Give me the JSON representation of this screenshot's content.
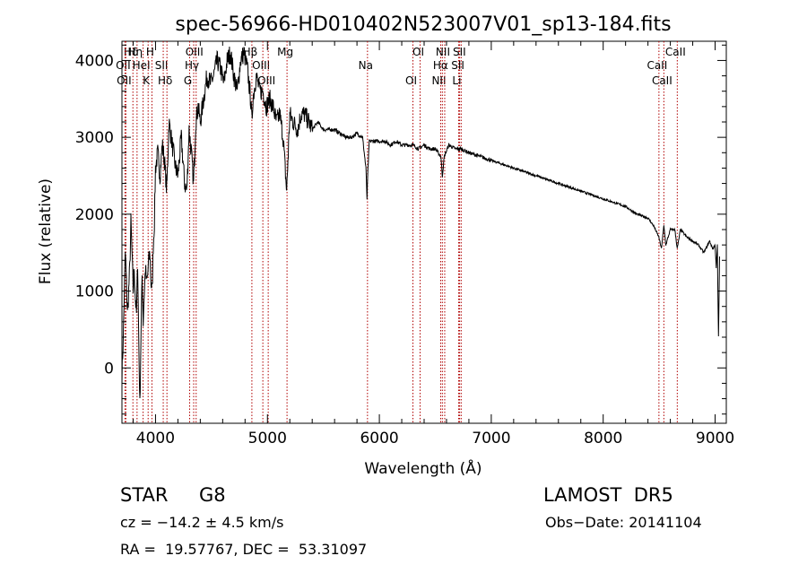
{
  "chart_data": {
    "type": "line",
    "title": "spec-56966-HD010402N523007V01_sp13-184.fits",
    "xlabel": "Wavelength (Å)",
    "ylabel": "Flux (relative)",
    "xlim": [
      3700,
      9100
    ],
    "ylim": [
      -720,
      4250
    ],
    "xticks": [
      4000,
      5000,
      6000,
      7000,
      8000,
      9000
    ],
    "xtick_labels": [
      "4000",
      "5000",
      "6000",
      "7000",
      "8000",
      "9000"
    ],
    "yticks": [
      0,
      1000,
      2000,
      3000,
      4000
    ],
    "ytick_labels": [
      "0",
      "1000",
      "2000",
      "3000",
      "4000"
    ],
    "grid": false,
    "series": [
      {
        "x": [
          3700,
          3710,
          3720,
          3730,
          3740,
          3750,
          3760,
          3770,
          3780,
          3790,
          3800,
          3810,
          3820,
          3830,
          3840,
          3850,
          3860,
          3870,
          3880,
          3890,
          3900,
          3910,
          3920,
          3930,
          3940,
          3950,
          3960,
          3970,
          3980,
          3990,
          4000,
          4020,
          4040,
          4060,
          4080,
          4100,
          4120,
          4150,
          4180,
          4200,
          4230,
          4260,
          4280,
          4300,
          4320,
          4340,
          4360,
          4380,
          4400,
          4430,
          4460,
          4490,
          4520,
          4550,
          4580,
          4610,
          4640,
          4670,
          4700,
          4730,
          4760,
          4790,
          4820,
          4850,
          4861,
          4870,
          4900,
          4930,
          4960,
          4990,
          5020,
          5050,
          5080,
          5110,
          5140,
          5167,
          5172,
          5183,
          5200,
          5230,
          5270,
          5300,
          5330,
          5370,
          5400,
          5450,
          5500,
          5550,
          5600,
          5650,
          5700,
          5750,
          5800,
          5850,
          5880,
          5890,
          5896,
          5910,
          5950,
          6000,
          6050,
          6100,
          6150,
          6200,
          6250,
          6300,
          6350,
          6400,
          6450,
          6500,
          6550,
          6563,
          6580,
          6620,
          6680,
          6730,
          6800,
          6900,
          7000,
          7100,
          7200,
          7300,
          7400,
          7500,
          7600,
          7700,
          7800,
          7900,
          8000,
          8100,
          8200,
          8300,
          8400,
          8450,
          8498,
          8520,
          8542,
          8560,
          8600,
          8640,
          8662,
          8690,
          8750,
          8800,
          8850,
          8900,
          8950,
          8980,
          9000,
          9010,
          9020,
          9030,
          9040
        ],
        "y": [
          -100,
          300,
          900,
          1500,
          1100,
          700,
          1000,
          1300,
          1900,
          1500,
          1000,
          1300,
          900,
          700,
          1400,
          400,
          -500,
          400,
          1200,
          600,
          1000,
          1300,
          1100,
          1200,
          1400,
          1500,
          1100,
          1000,
          1600,
          1900,
          2600,
          2800,
          2500,
          2900,
          2700,
          2300,
          3200,
          2900,
          2600,
          2500,
          3000,
          2400,
          2300,
          3100,
          2800,
          2400,
          3200,
          3400,
          3200,
          3500,
          3800,
          3700,
          3800,
          4000,
          3900,
          3700,
          4000,
          4100,
          3800,
          3600,
          4000,
          4100,
          3900,
          3500,
          3200,
          3500,
          3800,
          3600,
          3600,
          3400,
          3500,
          3400,
          3200,
          3300,
          3000,
          2400,
          2300,
          2700,
          3300,
          3200,
          3100,
          3300,
          3300,
          3200,
          3100,
          3200,
          3100,
          3100,
          3100,
          3050,
          3000,
          3000,
          3050,
          3000,
          2600,
          2200,
          2500,
          2950,
          2950,
          2950,
          2950,
          2900,
          2950,
          2900,
          2900,
          2900,
          2850,
          2900,
          2850,
          2850,
          2750,
          2500,
          2750,
          2900,
          2850,
          2850,
          2800,
          2750,
          2700,
          2650,
          2600,
          2550,
          2500,
          2450,
          2400,
          2350,
          2300,
          2250,
          2200,
          2150,
          2100,
          2000,
          1950,
          1850,
          1700,
          1550,
          1850,
          1600,
          1800,
          1800,
          1550,
          1800,
          1700,
          1650,
          1600,
          1500,
          1650,
          1550,
          1600,
          1300,
          1600,
          400,
          1450
        ]
      }
    ],
    "lines": [
      {
        "label": "Hδ",
        "x": 3798
      },
      {
        "label": "OII",
        "x": 3727
      },
      {
        "label": "OII",
        "x": 3735
      },
      {
        "label": "Hη",
        "x": 3835
      },
      {
        "label": "HeI",
        "x": 3889
      },
      {
        "label": "K",
        "x": 3934
      },
      {
        "label": "H",
        "x": 3968
      },
      {
        "label": "SII",
        "x": 4069
      },
      {
        "label": "Hδ",
        "x": 4102
      },
      {
        "label": "OIII",
        "x": 4363
      },
      {
        "label": "Hγ",
        "x": 4341
      },
      {
        "label": "G",
        "x": 4305
      },
      {
        "label": "Hβ",
        "x": 4861
      },
      {
        "label": "OIII",
        "x": 4959
      },
      {
        "label": "OIII",
        "x": 5007
      },
      {
        "label": "Mg",
        "x": 5175
      },
      {
        "label": "Na",
        "x": 5894
      },
      {
        "label": "OI",
        "x": 6300
      },
      {
        "label": "OI",
        "x": 6364
      },
      {
        "label": "Hα",
        "x": 6563
      },
      {
        "label": "NII",
        "x": 6548
      },
      {
        "label": "NII",
        "x": 6584
      },
      {
        "label": "SII",
        "x": 6717
      },
      {
        "label": "Li",
        "x": 6708
      },
      {
        "label": "SII",
        "x": 6731
      },
      {
        "label": "CaII",
        "x": 8498
      },
      {
        "label": "CaII",
        "x": 8542
      },
      {
        "label": "CaII",
        "x": 8662
      }
    ]
  },
  "footer": {
    "object_type": "STAR",
    "subclass": "G8",
    "survey": "LAMOST  DR5",
    "cz": "cz = −14.2 ± 4.5 km/s",
    "obs_date": "Obs−Date: 20141104",
    "coords": "RA =  19.57767, DEC =  53.31097"
  }
}
